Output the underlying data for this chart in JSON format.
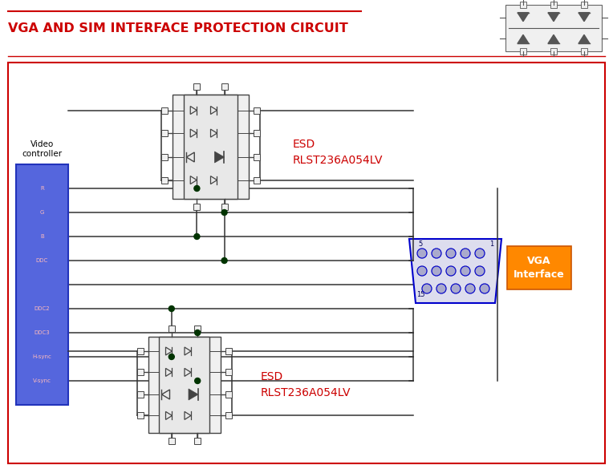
{
  "title": "VGA AND SIM INTERFACE PROTECTION CIRCUIT",
  "title_color": "#cc0000",
  "bg_color": "#ffffff",
  "border_color": "#cc0000",
  "vc_fill": "#5566dd",
  "vc_pins": [
    "R",
    "G",
    "B",
    "DDC",
    "",
    "DDC2",
    "DDC3",
    "H-sync",
    "V-sync"
  ],
  "esd_top_label": "ESD\nRLST236A054LV",
  "esd_bot_label": "ESD\nRLST236A054LV",
  "vga_label": "VGA\nInterface",
  "vga_fill": "#ff8800",
  "vga_text_color": "#ffffff",
  "vga_border": "#0000cc",
  "line_color": "#333333",
  "dot_color": "#003300",
  "ic_color": "#555555"
}
